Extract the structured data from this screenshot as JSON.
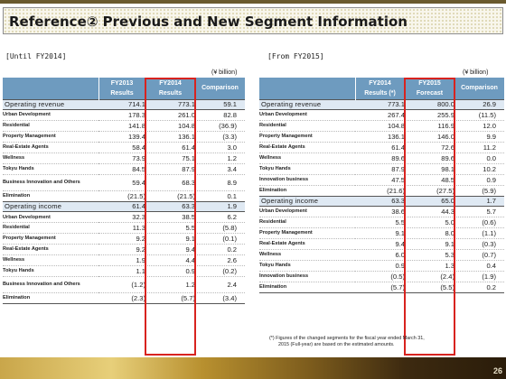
{
  "title": "Reference②  Previous and New Segment Information",
  "left": {
    "section_label": "[Until FY2014]",
    "unit": "(¥ billion)",
    "headers": {
      "col1_line1": "FY2013",
      "col1_line2": "Results",
      "col2_line1": "FY2014",
      "col2_line2": "Results",
      "col3": "Comparison"
    },
    "revenue": {
      "label": "Operating revenue",
      "v1": "714.1",
      "v2": "773.1",
      "v3": "59.1",
      "rows": [
        {
          "label": "Urban Development",
          "v1": "178.3",
          "v2": "261.0",
          "v3": "82.8"
        },
        {
          "label": "Residential",
          "v1": "141.8",
          "v2": "104.8",
          "v3": "(36.9)"
        },
        {
          "label": "Property Management",
          "v1": "139.4",
          "v2": "136.1",
          "v3": "(3.3)"
        },
        {
          "label": "Real-Estate Agents",
          "v1": "58.4",
          "v2": "61.4",
          "v3": "3.0"
        },
        {
          "label": "Wellness",
          "v1": "73.9",
          "v2": "75.1",
          "v3": "1.2"
        },
        {
          "label": "Tokyu Hands",
          "v1": "84.5",
          "v2": "87.9",
          "v3": "3.4"
        },
        {
          "label": "Business Innovation and Others",
          "v1": "59.4",
          "v2": "68.3",
          "v3": "8.9"
        },
        {
          "label": "Elimination",
          "v1": "(21.5)",
          "v2": "(21.5)",
          "v3": "0.1"
        }
      ]
    },
    "income": {
      "label": "Operating income",
      "v1": "61.4",
      "v2": "63.3",
      "v3": "1.9",
      "rows": [
        {
          "label": "Urban Development",
          "v1": "32.3",
          "v2": "38.5",
          "v3": "6.2"
        },
        {
          "label": "Residential",
          "v1": "11.3",
          "v2": "5.5",
          "v3": "(5.8)"
        },
        {
          "label": "Property Management",
          "v1": "9.2",
          "v2": "9.1",
          "v3": "(0.1)"
        },
        {
          "label": "Real-Estate Agents",
          "v1": "9.2",
          "v2": "9.4",
          "v3": "0.2"
        },
        {
          "label": "Wellness",
          "v1": "1.9",
          "v2": "4.4",
          "v3": "2.6"
        },
        {
          "label": "Tokyu Hands",
          "v1": "1.1",
          "v2": "0.9",
          "v3": "(0.2)"
        },
        {
          "label": "Business Innovation and Others",
          "v1": "(1.2)",
          "v2": "1.2",
          "v3": "2.4"
        },
        {
          "label": "Elimination",
          "v1": "(2.3)",
          "v2": "(5.7)",
          "v3": "(3.4)"
        }
      ]
    }
  },
  "right": {
    "section_label": "[From FY2015]",
    "unit": "(¥ billion)",
    "headers": {
      "col1_line1": "FY2014",
      "col1_line2": "Results (*)",
      "col2_line1": "FY2015",
      "col2_line2": "Forecast",
      "col3": "Comparison"
    },
    "revenue": {
      "label": "Operating revenue",
      "v1": "773.1",
      "v2": "800.0",
      "v3": "26.9",
      "rows": [
        {
          "label": "Urban Development",
          "v1": "267.4",
          "v2": "255.9",
          "v3": "(11.5)"
        },
        {
          "label": "Residential",
          "v1": "104.8",
          "v2": "116.9",
          "v3": "12.0"
        },
        {
          "label": "Property Management",
          "v1": "136.1",
          "v2": "146.0",
          "v3": "9.9"
        },
        {
          "label": "Real-Estate Agents",
          "v1": "61.4",
          "v2": "72.6",
          "v3": "11.2"
        },
        {
          "label": "Wellness",
          "v1": "89.6",
          "v2": "89.6",
          "v3": "0.0"
        },
        {
          "label": "Tokyu Hands",
          "v1": "87.9",
          "v2": "98.1",
          "v3": "10.2"
        },
        {
          "label": "Innovation business",
          "v1": "47.5",
          "v2": "48.5",
          "v3": "0.9"
        },
        {
          "label": "Elimination",
          "v1": "(21.6)",
          "v2": "(27.5)",
          "v3": "(5.9)"
        }
      ]
    },
    "income": {
      "label": "Operating income",
      "v1": "63.3",
      "v2": "65.0",
      "v3": "1.7",
      "rows": [
        {
          "label": "Urban Development",
          "v1": "38.6",
          "v2": "44.3",
          "v3": "5.7"
        },
        {
          "label": "Residential",
          "v1": "5.5",
          "v2": "5.0",
          "v3": "(0.6)"
        },
        {
          "label": "Property Management",
          "v1": "9.1",
          "v2": "8.0",
          "v3": "(1.1)"
        },
        {
          "label": "Real-Estate Agents",
          "v1": "9.4",
          "v2": "9.1",
          "v3": "(0.3)"
        },
        {
          "label": "Wellness",
          "v1": "6.0",
          "v2": "5.3",
          "v3": "(0.7)"
        },
        {
          "label": "Tokyu Hands",
          "v1": "0.9",
          "v2": "1.3",
          "v3": "0.4"
        },
        {
          "label": "Innovation business",
          "v1": "(0.5)",
          "v2": "(2.4)",
          "v3": "(1.9)"
        },
        {
          "label": "Elimination",
          "v1": "(5.7)",
          "v2": "(5.5)",
          "v3": "0.2"
        }
      ]
    }
  },
  "footnote": {
    "line1": "(*) Figures of the changed segments for the fiscal year ended March 31,",
    "line2": "2015 (Full-year) are based on the estimated amounts."
  },
  "page_number": "26",
  "colors": {
    "header_blue": "#6e9bbf",
    "total_row_blue": "#dfe9f3",
    "highlight_red": "#d8231f"
  }
}
